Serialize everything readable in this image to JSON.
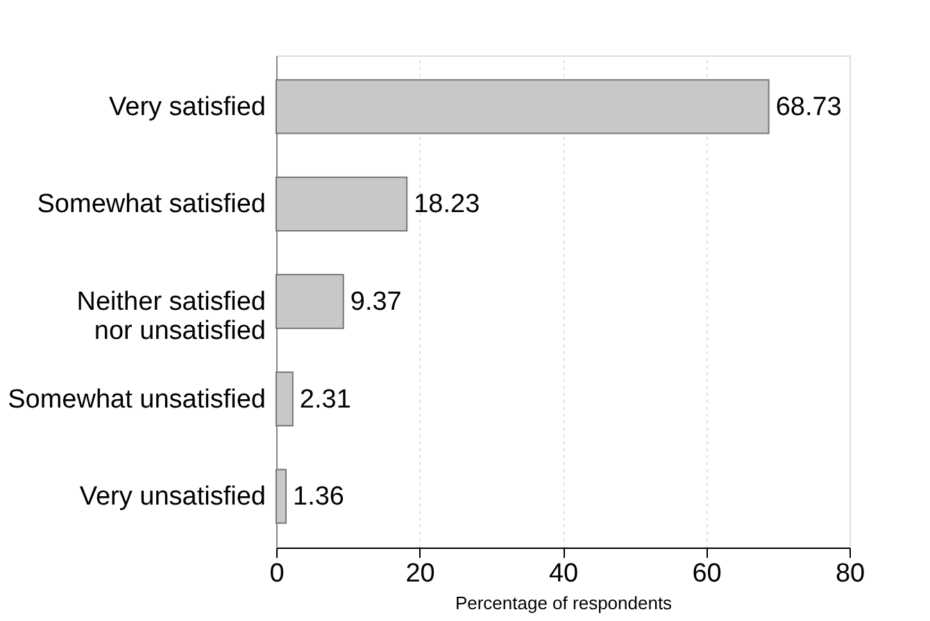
{
  "chart_data": {
    "type": "bar",
    "orientation": "horizontal",
    "categories": [
      "Very satisfied",
      "Somewhat satisfied",
      "Neither satisfied\nnor unsatisfied",
      "Somewhat unsatisfied",
      "Very unsatisfied"
    ],
    "values": [
      68.73,
      18.23,
      9.37,
      2.31,
      1.36
    ],
    "color": "#c8c8c8",
    "data_labels": true,
    "xlabel": "Percentage of respondents",
    "xlim": [
      0,
      80
    ],
    "xticks": [
      0,
      20,
      40,
      60,
      80
    ],
    "grid": "x"
  }
}
